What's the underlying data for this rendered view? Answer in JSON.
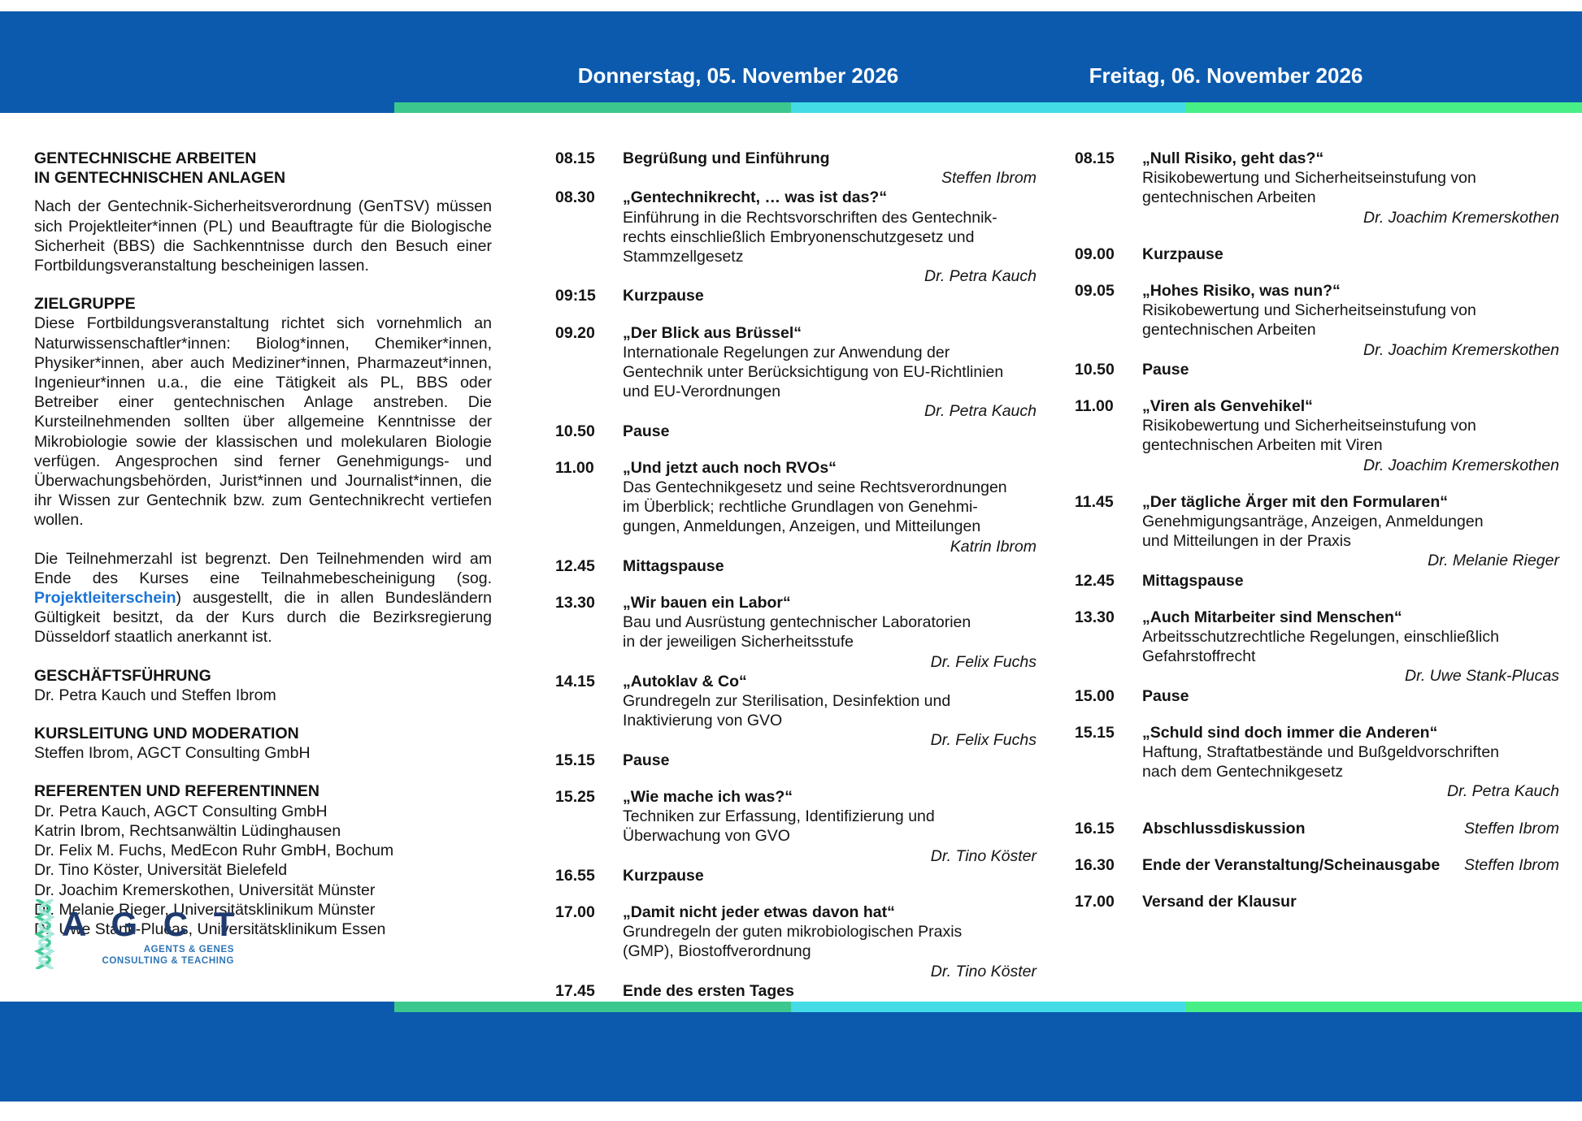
{
  "header": {
    "thursday_date": "Donnerstag, 05. November 2026",
    "friday_date": "Freitag, 06. November 2026"
  },
  "colors": {
    "header_blue": "#0b5aad",
    "strip_green": "#3cc78e",
    "strip_cyan": "#43dce6",
    "strip_bright_green": "#47ef86",
    "link_blue": "#1b74d6",
    "logo_navy": "#1f3a6e",
    "logo_blue": "#2e75b6"
  },
  "left": {
    "title_line1": "GENTECHNISCHE ARBEITEN",
    "title_line2": "IN GENTECHNISCHEN ANLAGEN",
    "intro": "Nach der Gentechnik-Sicherheitsverordnung (GenTSV) müssen sich Projektleiter*innen (PL) und Beauftragte für die Biologische Sicherheit (BBS) die Sachkenntnisse durch den Besuch einer Fortbildungsveranstaltung bescheinigen lassen.",
    "zielgruppe_heading": "ZIELGRUPPE",
    "zielgruppe_text": "Diese Fortbildungsveranstaltung richtet sich vornehmlich an Naturwissenschaftler*innen: Biolog*innen, Chemiker*innen, Physiker*innen, aber auch Mediziner*innen, Pharmazeut*innen, Ingenieur*innen u.a., die eine Tätigkeit als PL, BBS oder Betreiber einer gentechnischen Anlage anstreben. Die Kursteilnehmenden sollten über allgemeine Kenntnisse der Mikrobiologie sowie der klassischen und molekularen Biologie verfügen. Angesprochen sind ferner Genehmigungs- und Überwachungsbehörden, Jurist*innen und Journalist*innen, die ihr Wissen zur Gentechnik bzw. zum Gentechnikrecht vertiefen wollen.",
    "participants_pre": "Die Teilnehmerzahl ist begrenzt. Den Teilnehmenden wird am Ende des Kurses eine Teilnahmebescheinigung (sog. ",
    "participants_link": "Projektleiterschein",
    "participants_post": ") ausgestellt, die in allen Bundesländern Gültigkeit besitzt, da der Kurs durch die Bezirksregierung Düsseldorf staatlich anerkannt ist.",
    "management_heading": "GESCHÄFTSFÜHRUNG",
    "management_text": "Dr. Petra Kauch und Steffen Ibrom",
    "lead_heading": "KURSLEITUNG UND MODERATION",
    "lead_text": "Steffen Ibrom, AGCT Consulting GmbH",
    "speakers_heading": "REFERENTEN UND REFERENTINNEN",
    "speakers": [
      "Dr. Petra Kauch, AGCT Consulting GmbH",
      "Katrin Ibrom, Rechtsanwältin Lüdinghausen",
      "Dr. Felix M. Fuchs, MedEcon Ruhr GmbH, Bochum",
      "Dr. Tino Köster, Universität Bielefeld",
      "Dr. Joachim Kremerskothen, Universität Münster",
      "Dr. Melanie Rieger, Universitätsklinikum Münster",
      "Dr. Uwe Stank-Plucas, Universitätsklinikum Essen"
    ]
  },
  "logo": {
    "letters": "A G C T",
    "sub_line1": "AGENTS & GENES",
    "sub_line2": "CONSULTING & TEACHING"
  },
  "schedule": {
    "thursday": [
      {
        "time": "08.15",
        "title": "Begrüßung und Einführung",
        "speaker": "Steffen Ibrom"
      },
      {
        "time": "08.30",
        "title": "„Gentechnikrecht, … was ist das?“",
        "desc": [
          "Einführung in die Rechtsvorschriften des Gentechnik-",
          "rechts einschließlich Embryonenschutzgesetz und",
          "Stammzellgesetz"
        ],
        "speaker": "Dr. Petra Kauch"
      },
      {
        "time": "09:15",
        "title": "Kurzpause"
      },
      {
        "time": "09.20",
        "title": "„Der Blick aus Brüssel“",
        "desc": [
          "Internationale Regelungen zur Anwendung der",
          "Gentechnik unter Berücksichtigung von EU-Richtlinien",
          "und EU-Verordnungen"
        ],
        "speaker": "Dr. Petra Kauch",
        "gap": true
      },
      {
        "time": "10.50",
        "title": "Pause"
      },
      {
        "time": "11.00",
        "title": "„Und jetzt auch noch RVOs“",
        "desc": [
          "Das Gentechnikgesetz und seine Rechtsverordnungen",
          "im Überblick; rechtliche Grundlagen von Genehmi-",
          "gungen, Anmeldungen, Anzeigen, und Mitteilungen"
        ],
        "speaker": "Katrin Ibrom",
        "gap": true
      },
      {
        "time": "12.45",
        "title": "Mittagspause"
      },
      {
        "time": "13.30",
        "title": "„Wir bauen ein Labor“",
        "desc": [
          "Bau und Ausrüstung gentechnischer Laboratorien",
          "in der jeweiligen Sicherheitsstufe"
        ],
        "speaker": "Dr. Felix Fuchs",
        "gap": true
      },
      {
        "time": "14.15",
        "title": "„Autoklav & Co“",
        "desc": [
          "Grundregeln zur Sterilisation, Desinfektion und",
          "Inaktivierung von GVO"
        ],
        "speaker": "Dr. Felix Fuchs"
      },
      {
        "time": "15.15",
        "title": "Pause"
      },
      {
        "time": "15.25",
        "title": "„Wie mache ich was?“",
        "desc": [
          "Techniken zur Erfassung, Identifizierung und",
          "Überwachung von GVO"
        ],
        "speaker": "Dr. Tino Köster",
        "gap": true
      },
      {
        "time": "16.55",
        "title": "Kurzpause"
      },
      {
        "time": "17.00",
        "title": "„Damit nicht jeder etwas davon hat“",
        "desc": [
          "Grundregeln der guten mikrobiologischen Praxis",
          "(GMP), Biostoffverordnung"
        ],
        "speaker": "Dr. Tino Köster",
        "gap": true
      },
      {
        "time": "17.45",
        "title": "Ende des ersten Tages"
      }
    ],
    "friday": [
      {
        "time": "08.15",
        "title": "„Null Risiko, geht das?“",
        "desc": [
          "Risikobewertung und Sicherheitseinstufung von",
          "gentechnischen Arbeiten"
        ],
        "speaker": "Dr. Joachim Kremerskothen"
      },
      {
        "time": "09.00",
        "title": "Kurzpause",
        "gap": true
      },
      {
        "time": "09.05",
        "title": "„Hohes Risiko, was nun?“",
        "desc": [
          "Risikobewertung und Sicherheitseinstufung von",
          "gentechnischen Arbeiten"
        ],
        "speaker": "Dr. Joachim Kremerskothen",
        "gap": true
      },
      {
        "time": "10.50",
        "title": "Pause"
      },
      {
        "time": "11.00",
        "title": "„Viren als Genvehikel“",
        "desc": [
          "Risikobewertung und Sicherheitseinstufung von",
          "gentechnischen Arbeiten mit Viren"
        ],
        "speaker": "Dr. Joachim Kremerskothen",
        "gap": true
      },
      {
        "time": "11.45",
        "title": "„Der tägliche Ärger mit den Formularen“",
        "desc": [
          "Genehmigungsanträge, Anzeigen, Anmeldungen",
          "und Mitteilungen in der Praxis"
        ],
        "speaker": "Dr. Melanie Rieger",
        "gap": true
      },
      {
        "time": "12.45",
        "title": "Mittagspause"
      },
      {
        "time": "13.30",
        "title": "„Auch Mitarbeiter sind Menschen“",
        "desc": [
          "Arbeitsschutzrechtliche Regelungen, einschließlich",
          "Gefahrstoffrecht"
        ],
        "speaker": "Dr. Uwe Stank-Plucas",
        "gap": true
      },
      {
        "time": "15.00",
        "title": "Pause"
      },
      {
        "time": "15.15",
        "title": "„Schuld sind doch immer die Anderen“",
        "desc": [
          "Haftung, Straftatbestände und Bußgeldvorschriften",
          "nach dem Gentechnikgesetz"
        ],
        "speaker": "Dr. Petra Kauch",
        "gap": true
      },
      {
        "time": "16.15",
        "title": "Abschlussdiskussion",
        "speaker_inline": "Steffen Ibrom",
        "gap": true
      },
      {
        "time": "16.30",
        "title": "Ende der Veranstaltung/Scheinausgabe",
        "speaker_inline": "Steffen Ibrom",
        "gap": true
      },
      {
        "time": "17.00",
        "title": "Versand der Klausur",
        "gap": true
      }
    ]
  }
}
